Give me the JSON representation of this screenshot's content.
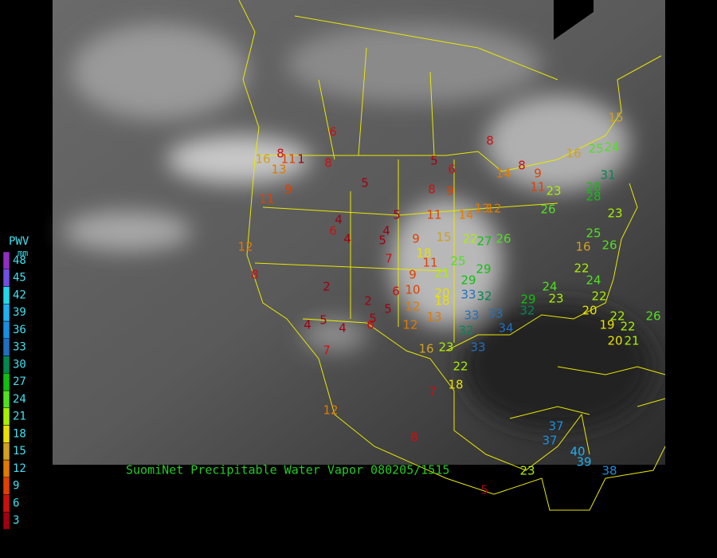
{
  "legend": {
    "title": "PWV",
    "unit": "mm",
    "levels": [
      3,
      6,
      9,
      12,
      15,
      18,
      21,
      24,
      27,
      30,
      33,
      36,
      39,
      42,
      45,
      48
    ],
    "colors": [
      "#a00010",
      "#cc1010",
      "#e04000",
      "#e07a00",
      "#d0a020",
      "#e8e000",
      "#a8f000",
      "#50e020",
      "#10c010",
      "#008850",
      "#2070c0",
      "#1890e0",
      "#20b0f0",
      "#20d8e8",
      "#7050e0",
      "#9030c0"
    ]
  },
  "caption": "SuomiNet Precipitable Water Vapor 080205/1515",
  "stations": [
    6,
    15,
    8,
    16,
    8,
    11,
    1,
    13,
    8,
    9,
    11,
    5,
    5,
    6,
    8,
    9,
    14,
    8,
    9,
    11,
    23,
    16,
    25,
    24,
    31,
    28,
    28,
    26,
    23,
    25,
    26,
    5,
    11,
    14,
    13,
    12,
    4,
    6,
    4,
    4,
    5,
    9,
    15,
    22,
    27,
    26,
    18,
    7,
    11,
    25,
    21,
    16,
    22,
    24,
    29,
    29,
    9,
    20,
    33,
    32,
    2,
    2,
    5,
    6,
    10,
    12,
    13,
    12,
    18,
    33,
    33,
    32,
    29,
    24,
    23,
    32,
    34,
    5,
    4,
    4,
    5,
    6,
    7,
    16,
    23,
    33,
    22,
    18,
    7,
    12,
    8,
    37,
    37,
    40,
    39,
    38,
    23,
    5,
    20,
    22,
    22,
    19,
    22,
    20,
    21,
    26,
    12,
    8
  ]
}
